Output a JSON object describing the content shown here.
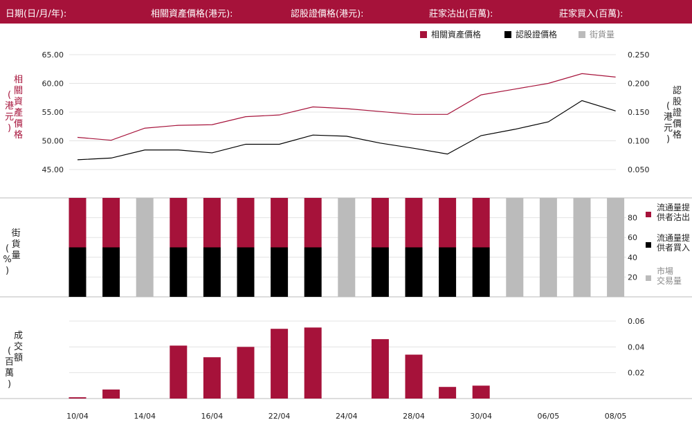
{
  "header": {
    "date_label": "日期(日/月/年):",
    "underlying_label": "相關資產價格(港元):",
    "warrant_label": "認股證價格(港元):",
    "bank_sell_label": "莊家沽出(百萬):",
    "bank_buy_label": "莊家買入(百萬):"
  },
  "colors": {
    "brand": "#a6123a",
    "black": "#000000",
    "grey": "#bbbbbb"
  },
  "chart_data": [
    {
      "type": "line",
      "legend": [
        "相關資產價格",
        "認股證價格",
        "街貨量"
      ],
      "legend_position": "top-right",
      "left_axis_label": "相關資產價格 (港元)",
      "right_axis_label": "認股證價格 (港元)",
      "left_ticks": [
        "45.00",
        "50.00",
        "55.00",
        "60.00",
        "65.00"
      ],
      "right_ticks": [
        "0.050",
        "0.100",
        "0.150",
        "0.200",
        "0.250"
      ],
      "left_ylim": [
        45,
        65
      ],
      "right_ylim": [
        0.05,
        0.25
      ],
      "series": [
        {
          "name": "相關資產價格",
          "axis": "left",
          "values": [
            50.6,
            50.1,
            52.2,
            52.7,
            52.8,
            54.2,
            54.5,
            55.9,
            55.6,
            55.1,
            54.6,
            54.6,
            58.0,
            59.0,
            60.0,
            61.7,
            61.1
          ]
        },
        {
          "name": "認股證價格",
          "axis": "right",
          "values": [
            0.067,
            0.07,
            0.084,
            0.084,
            0.079,
            0.094,
            0.094,
            0.11,
            0.108,
            0.096,
            0.087,
            0.077,
            0.109,
            0.12,
            0.133,
            0.17,
            0.152
          ]
        }
      ]
    },
    {
      "type": "bar",
      "stacked": true,
      "axis_label": "街貨量 (%)",
      "ticks": [
        "20",
        "40",
        "60",
        "80"
      ],
      "ylim": [
        0,
        100
      ],
      "legend": [
        "流通量提供者沽出",
        "流通量提供者買入",
        "市場交易量"
      ],
      "legend_lines": [
        [
          "流通量提",
          "供者沽出"
        ],
        [
          "流通量提",
          "供者買入"
        ],
        [
          "市場",
          "交易量"
        ]
      ],
      "series": [
        {
          "name": "流通量提供者沽出",
          "values": [
            50,
            50,
            0,
            50,
            50,
            50,
            50,
            50,
            0,
            50,
            50,
            50,
            50,
            0,
            0,
            0,
            0
          ]
        },
        {
          "name": "流通量提供者買入",
          "values": [
            50,
            50,
            0,
            50,
            50,
            50,
            50,
            50,
            0,
            50,
            50,
            50,
            50,
            0,
            0,
            0,
            0
          ]
        },
        {
          "name": "市場交易量",
          "values": [
            0,
            0,
            100,
            0,
            0,
            0,
            0,
            0,
            100,
            0,
            0,
            0,
            0,
            100,
            100,
            100,
            100
          ]
        }
      ]
    },
    {
      "type": "bar",
      "axis_label": "成交額 (百萬)",
      "ticks": [
        "0.02",
        "0.04",
        "0.06"
      ],
      "ylim": [
        0,
        0.06
      ],
      "values": [
        0.001,
        0.007,
        0,
        0.041,
        0.032,
        0.04,
        0.054,
        0.055,
        0,
        0.046,
        0.034,
        0.009,
        0.01,
        0,
        0,
        0,
        0
      ],
      "x_tick_labels": [
        "10/04",
        "14/04",
        "16/04",
        "22/04",
        "24/04",
        "28/04",
        "30/04",
        "06/05",
        "08/05"
      ]
    }
  ]
}
